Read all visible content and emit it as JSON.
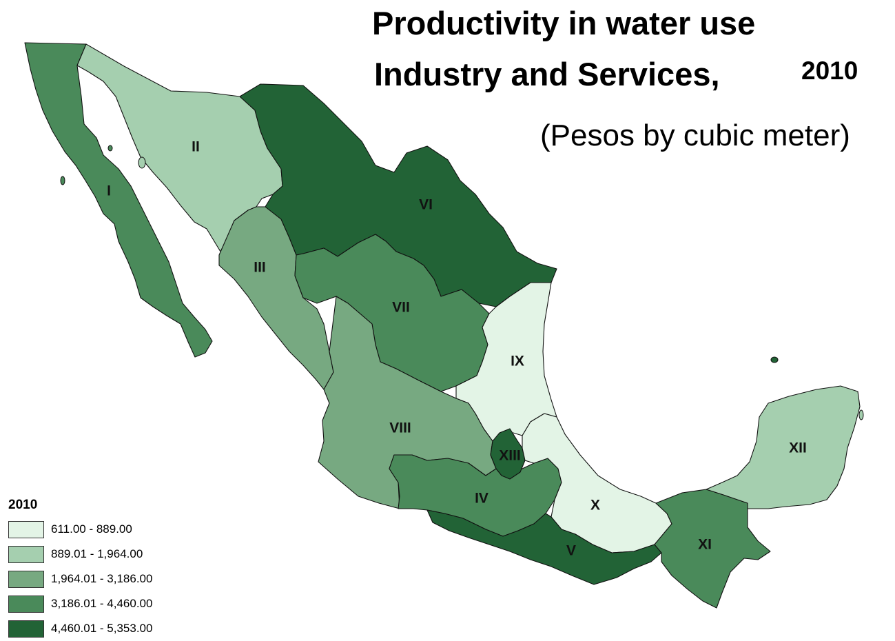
{
  "title": {
    "line1": "Productivity in water use",
    "line2": "Industry and Services,",
    "year": "2010",
    "subtitle": "(Pesos by cubic meter)"
  },
  "legend": {
    "title": "2010",
    "classes": [
      {
        "label": "611.00 - 889.00",
        "color": "#e3f4e6"
      },
      {
        "label": "889.01 - 1,964.00",
        "color": "#a5cfaf"
      },
      {
        "label": "1,964.01 - 3,186.00",
        "color": "#77a981"
      },
      {
        "label": "3,186.01 - 4,460.00",
        "color": "#4a8a5a"
      },
      {
        "label": "4,460.01 - 5,353.00",
        "color": "#226336"
      }
    ]
  },
  "regions": [
    {
      "id": "I",
      "class": 3
    },
    {
      "id": "II",
      "class": 1
    },
    {
      "id": "III",
      "class": 2
    },
    {
      "id": "IV",
      "class": 3
    },
    {
      "id": "V",
      "class": 4
    },
    {
      "id": "VI",
      "class": 4
    },
    {
      "id": "VII",
      "class": 3
    },
    {
      "id": "VIII",
      "class": 2
    },
    {
      "id": "IX",
      "class": 0
    },
    {
      "id": "X",
      "class": 0
    },
    {
      "id": "XI",
      "class": 3
    },
    {
      "id": "XII",
      "class": 1
    },
    {
      "id": "XIII",
      "class": 4
    }
  ]
}
